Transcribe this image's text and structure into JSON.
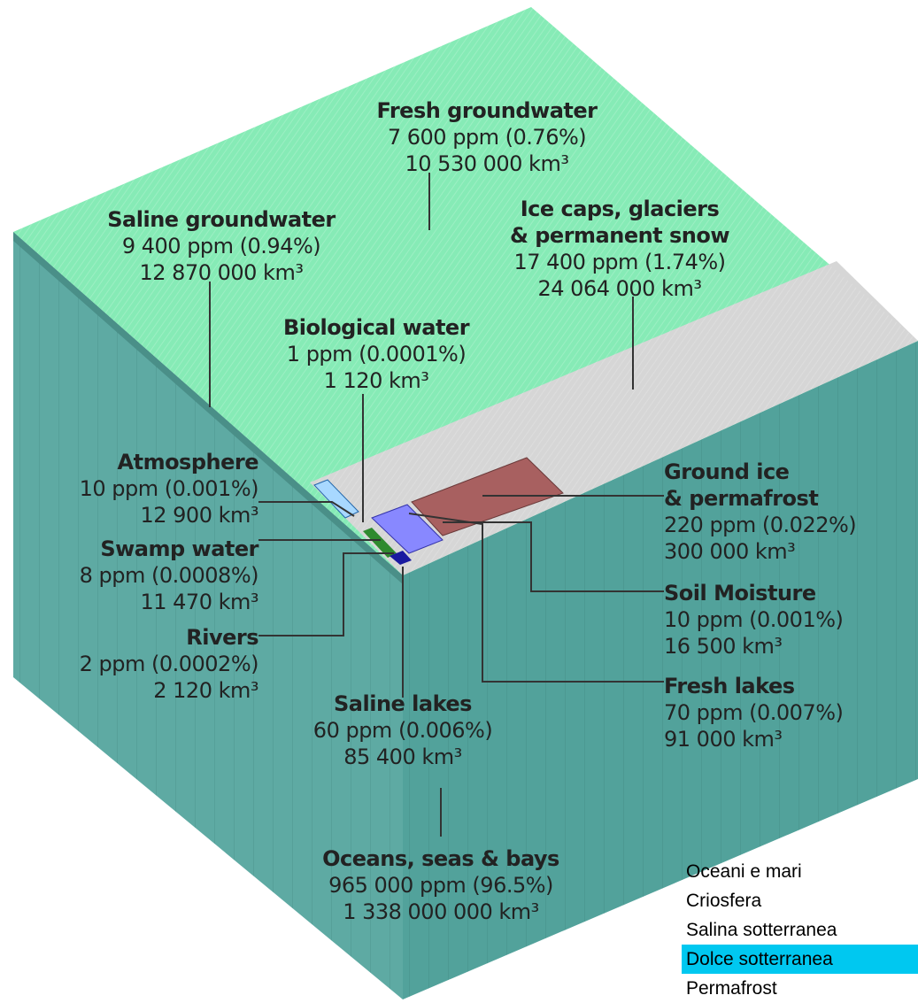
{
  "labels": [
    {
      "title": [
        "Fresh groundwater"
      ],
      "ppm": "7 600 ppm (0.76%)",
      "volume": "10 530 000 km³"
    },
    {
      "title": [
        "Saline groundwater"
      ],
      "ppm": "9 400 ppm (0.94%)",
      "volume": "12 870 000 km³"
    },
    {
      "title": [
        "Ice caps, glaciers",
        "& permanent snow"
      ],
      "ppm": "17 400 ppm (1.74%)",
      "volume": "24 064 000 km³"
    },
    {
      "title": [
        "Biological water"
      ],
      "ppm": "1 ppm (0.0001%)",
      "volume": "1 120 km³"
    },
    {
      "title": [
        "Atmosphere"
      ],
      "ppm": "10 ppm (0.001%)",
      "volume": "12 900 km³"
    },
    {
      "title": [
        "Swamp water"
      ],
      "ppm": "8 ppm (0.0008%)",
      "volume": "11 470 km³"
    },
    {
      "title": [
        "Rivers"
      ],
      "ppm": "2 ppm (0.0002%)",
      "volume": "2 120 km³"
    },
    {
      "title": [
        "Saline lakes"
      ],
      "ppm": "60 ppm (0.006%)",
      "volume": "85 400 km³"
    },
    {
      "title": [
        "Oceans, seas & bays"
      ],
      "ppm": "965 000 ppm (96.5%)",
      "volume": "1 338 000 000 km³"
    },
    {
      "title": [
        "Ground ice",
        "& permafrost"
      ],
      "ppm": "220 ppm (0.022%)",
      "volume": "300 000 km³"
    },
    {
      "title": [
        "Soil Moisture"
      ],
      "ppm": "10 ppm (0.001%)",
      "volume": "16 500 km³"
    },
    {
      "title": [
        "Fresh lakes"
      ],
      "ppm": "70 ppm (0.007%)",
      "volume": "91 000 km³"
    }
  ],
  "menu": {
    "items": [
      "Oceani e mari",
      "Criosfera",
      "Salina sotterranea",
      "Dolce sotterranea",
      "Permafrost"
    ]
  }
}
